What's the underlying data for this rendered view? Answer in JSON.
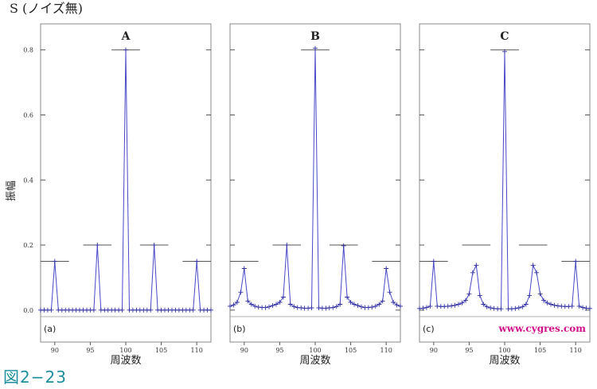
{
  "figure": {
    "title": "S (ノイズ無)",
    "ylabel": "振幅",
    "reference": "図2−23",
    "watermark": "www.cygres.com",
    "colors": {
      "line": "#4848c8",
      "marker": "#3030a0",
      "ref_line": "#555555",
      "watermark": "#d0108a",
      "reference": "#1e8e9e"
    }
  },
  "chart_data": [
    {
      "type": "line",
      "title": "A",
      "panel_label": "(a)",
      "xlabel": "周波数",
      "xlim": [
        88,
        112
      ],
      "ylim": [
        -0.02,
        0.88
      ],
      "xticks": [
        90,
        95,
        100,
        105,
        110
      ],
      "yticks": [
        0.0,
        0.2,
        0.4,
        0.6,
        0.8
      ],
      "ytick_labels": [
        "0.0",
        "0.2",
        "0.4",
        "0.6",
        "0.8"
      ],
      "ref_levels": [
        {
          "x": [
            88,
            92
          ],
          "y": 0.15
        },
        {
          "x": [
            94,
            98
          ],
          "y": 0.2
        },
        {
          "x": [
            98,
            102
          ],
          "y": 0.8
        },
        {
          "x": [
            102,
            106
          ],
          "y": 0.2
        },
        {
          "x": [
            108,
            112
          ],
          "y": 0.15
        }
      ],
      "series": [
        {
          "x": [
            88.0,
            88.5,
            89.0,
            89.5,
            90.0,
            90.5,
            91.0,
            91.5,
            92.0,
            92.5,
            93.0,
            93.5,
            94.0,
            94.5,
            95.0,
            95.5,
            96.0,
            96.5,
            97.0,
            97.5,
            98.0,
            98.5,
            99.0,
            99.5,
            100.0,
            100.5,
            101.0,
            101.5,
            102.0,
            102.5,
            103.0,
            103.5,
            104.0,
            104.5,
            105.0,
            105.5,
            106.0,
            106.5,
            107.0,
            107.5,
            108.0,
            108.5,
            109.0,
            109.5,
            110.0,
            110.5,
            111.0,
            111.5,
            112.0
          ],
          "y": [
            0.0,
            0.0,
            0.0,
            0.0,
            0.15,
            0.0,
            0.0,
            0.0,
            0.0,
            0.0,
            0.0,
            0.0,
            0.0,
            0.0,
            0.0,
            0.0,
            0.2,
            0.0,
            0.0,
            0.0,
            0.0,
            0.0,
            0.0,
            0.0,
            0.8,
            0.0,
            0.0,
            0.0,
            0.0,
            0.0,
            0.0,
            0.0,
            0.2,
            0.0,
            0.0,
            0.0,
            0.0,
            0.0,
            0.0,
            0.0,
            0.0,
            0.0,
            0.0,
            0.0,
            0.15,
            0.0,
            0.0,
            0.0,
            0.0
          ]
        }
      ]
    },
    {
      "type": "line",
      "title": "B",
      "panel_label": "(b)",
      "xlabel": "周波数",
      "xlim": [
        88,
        112
      ],
      "ylim": [
        -0.02,
        0.88
      ],
      "xticks": [
        90,
        95,
        100,
        105,
        110
      ],
      "yticks": [
        0.0,
        0.2,
        0.4,
        0.6,
        0.8
      ],
      "ytick_labels": [
        "",
        "",
        "",
        "",
        ""
      ],
      "ref_levels": [
        {
          "x": [
            88,
            92
          ],
          "y": 0.15
        },
        {
          "x": [
            94,
            98
          ],
          "y": 0.2
        },
        {
          "x": [
            98,
            102
          ],
          "y": 0.8
        },
        {
          "x": [
            102,
            106
          ],
          "y": 0.2
        },
        {
          "x": [
            108,
            112
          ],
          "y": 0.15
        }
      ],
      "series": [
        {
          "x": [
            88.0,
            88.5,
            89.0,
            89.5,
            90.0,
            90.5,
            91.0,
            91.5,
            92.0,
            92.5,
            93.0,
            93.5,
            94.0,
            94.5,
            95.0,
            95.5,
            96.0,
            96.5,
            97.0,
            97.5,
            98.0,
            98.5,
            99.0,
            99.5,
            100.0,
            100.5,
            101.0,
            101.5,
            102.0,
            102.5,
            103.0,
            103.5,
            104.0,
            104.5,
            105.0,
            105.5,
            106.0,
            106.5,
            107.0,
            107.5,
            108.0,
            108.5,
            109.0,
            109.5,
            110.0,
            110.5,
            111.0,
            111.5,
            112.0
          ],
          "y": [
            0.012,
            0.016,
            0.024,
            0.055,
            0.128,
            0.028,
            0.018,
            0.012,
            0.009,
            0.008,
            0.008,
            0.01,
            0.014,
            0.018,
            0.024,
            0.04,
            0.2,
            0.018,
            0.011,
            0.008,
            0.007,
            0.006,
            0.006,
            0.007,
            0.805,
            0.007,
            0.006,
            0.006,
            0.007,
            0.008,
            0.011,
            0.018,
            0.198,
            0.04,
            0.024,
            0.018,
            0.014,
            0.01,
            0.008,
            0.008,
            0.009,
            0.012,
            0.018,
            0.028,
            0.128,
            0.055,
            0.024,
            0.016,
            0.012
          ]
        }
      ]
    },
    {
      "type": "line",
      "title": "C",
      "panel_label": "(c)",
      "xlabel": "周波数",
      "xlim": [
        88,
        112
      ],
      "ylim": [
        -0.02,
        0.88
      ],
      "xticks": [
        90,
        95,
        100,
        105,
        110
      ],
      "yticks": [
        0.0,
        0.2,
        0.4,
        0.6,
        0.8
      ],
      "ytick_labels": [
        "",
        "",
        "",
        "",
        ""
      ],
      "ref_levels": [
        {
          "x": [
            88,
            92
          ],
          "y": 0.15
        },
        {
          "x": [
            94,
            98
          ],
          "y": 0.2
        },
        {
          "x": [
            98,
            102
          ],
          "y": 0.8
        },
        {
          "x": [
            102,
            106
          ],
          "y": 0.2
        },
        {
          "x": [
            108,
            112
          ],
          "y": 0.15
        }
      ],
      "series": [
        {
          "x": [
            88.0,
            88.5,
            89.0,
            89.5,
            90.0,
            90.5,
            91.0,
            91.5,
            92.0,
            92.5,
            93.0,
            93.5,
            94.0,
            94.5,
            95.0,
            95.5,
            96.0,
            96.5,
            97.0,
            97.5,
            98.0,
            98.5,
            99.0,
            99.5,
            100.0,
            100.5,
            101.0,
            101.5,
            102.0,
            102.5,
            103.0,
            103.5,
            104.0,
            104.5,
            105.0,
            105.5,
            106.0,
            106.5,
            107.0,
            107.5,
            108.0,
            108.5,
            109.0,
            109.5,
            110.0,
            110.5,
            111.0,
            111.5,
            112.0
          ],
          "y": [
            0.005,
            0.006,
            0.008,
            0.012,
            0.15,
            0.012,
            0.011,
            0.011,
            0.012,
            0.013,
            0.015,
            0.018,
            0.022,
            0.03,
            0.05,
            0.115,
            0.138,
            0.045,
            0.018,
            0.01,
            0.007,
            0.005,
            0.004,
            0.004,
            0.795,
            0.004,
            0.004,
            0.005,
            0.007,
            0.01,
            0.018,
            0.045,
            0.138,
            0.115,
            0.05,
            0.03,
            0.022,
            0.018,
            0.015,
            0.013,
            0.012,
            0.011,
            0.011,
            0.012,
            0.15,
            0.012,
            0.008,
            0.006,
            0.005
          ]
        }
      ]
    }
  ]
}
